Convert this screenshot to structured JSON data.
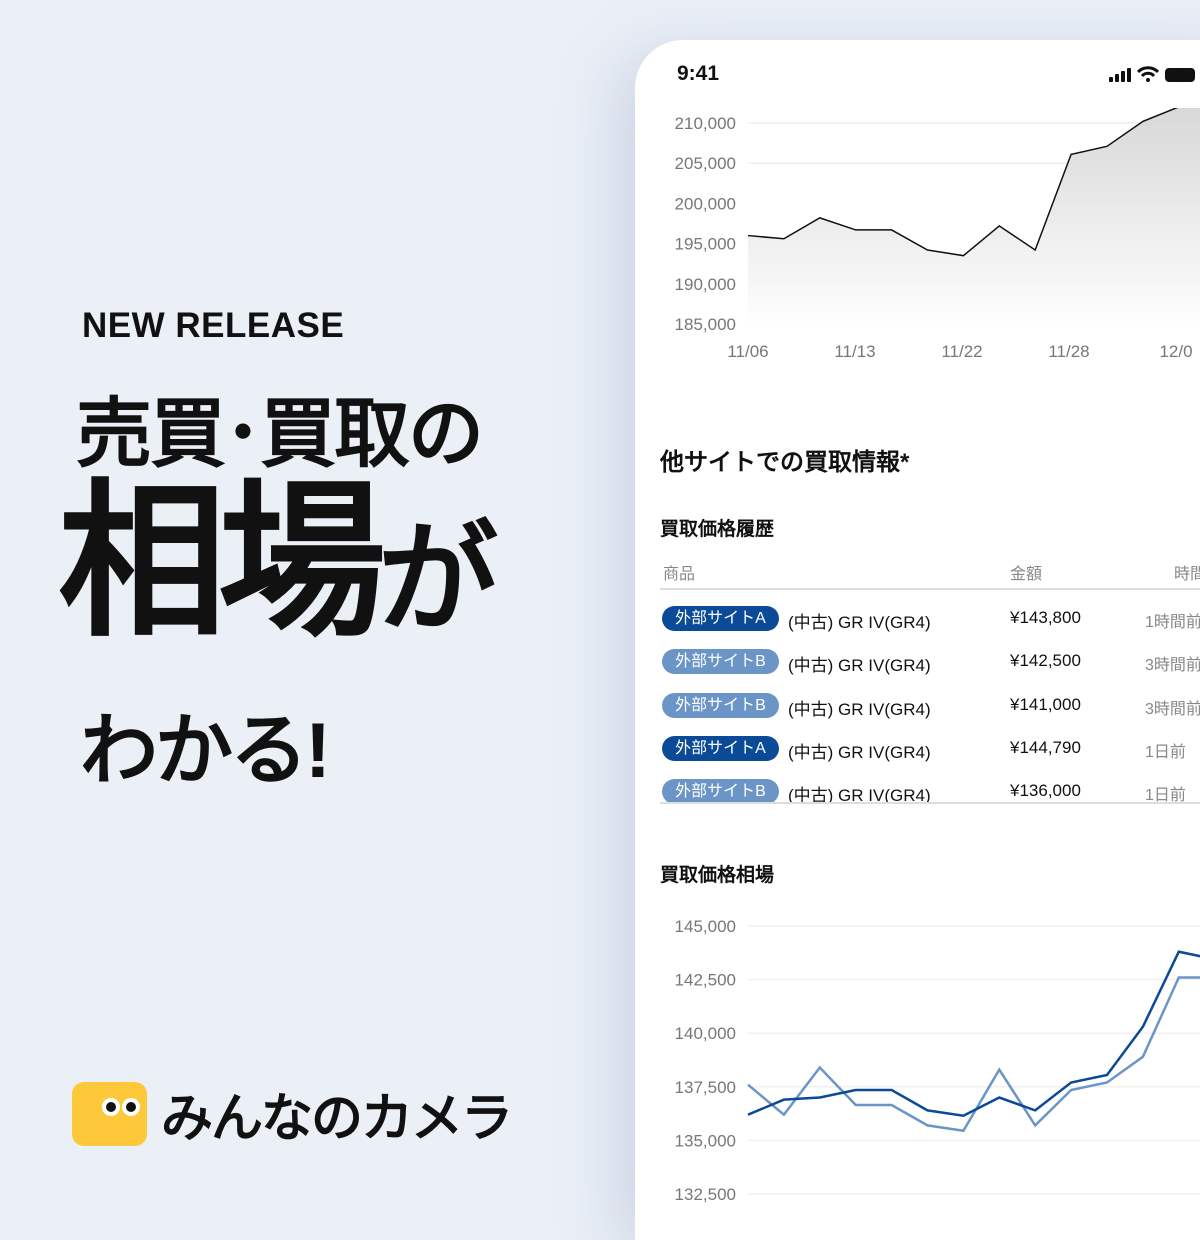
{
  "promo": {
    "tagline": "NEW RELEASE",
    "headline_1": "売買･買取の",
    "headline_2a": "相場",
    "headline_2b": "が",
    "headline_3": "わかる!",
    "brand": "みんなのカメラ",
    "brand_color": "#fdc93a"
  },
  "phone": {
    "time": "9:41",
    "section_title": "他サイトでの買取情報*",
    "history_title": "買取価格履歴",
    "market_title": "買取価格相場",
    "table": {
      "headers": [
        "商品",
        "金額",
        "時間"
      ],
      "rows": [
        {
          "site": "外部サイトA",
          "site_color": "#0b4a96",
          "product": "(中古) GR IV(GR4)",
          "price": "¥143,800",
          "time": "1時間前"
        },
        {
          "site": "外部サイトB",
          "site_color": "#6b95c7",
          "product": "(中古) GR IV(GR4)",
          "price": "¥142,500",
          "time": "3時間前"
        },
        {
          "site": "外部サイトB",
          "site_color": "#6b95c7",
          "product": "(中古) GR IV(GR4)",
          "price": "¥141,000",
          "time": "3時間前"
        },
        {
          "site": "外部サイトA",
          "site_color": "#0b4a96",
          "product": "(中古) GR IV(GR4)",
          "price": "¥144,790",
          "time": "1日前"
        },
        {
          "site": "外部サイトB",
          "site_color": "#6b95c7",
          "product": "(中古) GR IV(GR4)",
          "price": "¥136,000",
          "time": "1日前"
        }
      ]
    }
  },
  "chart_data": [
    {
      "type": "area",
      "ylim": [
        185000,
        212000
      ],
      "yticks": [
        "210,000",
        "205,000",
        "200,000",
        "195,000",
        "190,000",
        "185,000"
      ],
      "xticks": [
        "11/06",
        "11/13",
        "11/22",
        "11/28",
        "12/0"
      ],
      "grid": true,
      "series": [
        {
          "color": "#111111",
          "values": [
            196000,
            195600,
            198200,
            196700,
            196700,
            194200,
            193500,
            197200,
            194200,
            206100,
            207100,
            210200,
            212000
          ]
        }
      ]
    },
    {
      "type": "line",
      "ylim": [
        132500,
        145000
      ],
      "yticks": [
        "145,000",
        "142,500",
        "140,000",
        "137,500",
        "135,000",
        "132,500"
      ],
      "grid": true,
      "series": [
        {
          "color": "#0b4a96",
          "values": [
            136200,
            136900,
            137000,
            137350,
            137350,
            136400,
            136150,
            137000,
            136400,
            137700,
            138050,
            140300,
            143800,
            143450
          ]
        },
        {
          "color": "#6b95c7",
          "values": [
            137600,
            136200,
            138400,
            136650,
            136650,
            135700,
            135450,
            138300,
            135700,
            137350,
            137700,
            138900,
            142600,
            142600
          ]
        }
      ]
    }
  ]
}
